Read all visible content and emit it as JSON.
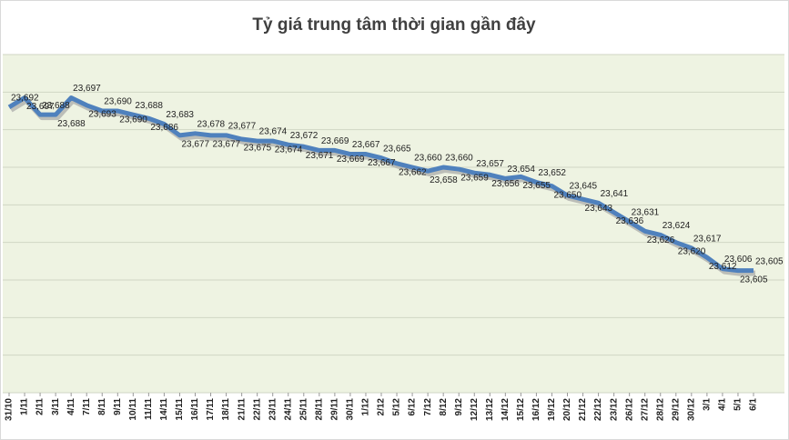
{
  "chart_data": {
    "type": "line",
    "title": "Tỷ giá trung tâm thời gian gần đây",
    "categories": [
      "31/10",
      "1/11",
      "2/11",
      "3/11",
      "4/11",
      "7/11",
      "8/11",
      "9/11",
      "10/11",
      "11/11",
      "14/11",
      "15/11",
      "16/11",
      "17/11",
      "18/11",
      "21/11",
      "22/11",
      "23/11",
      "24/11",
      "25/11",
      "28/11",
      "29/11",
      "30/11",
      "1/12",
      "2/12",
      "5/12",
      "6/12",
      "7/12",
      "8/12",
      "9/12",
      "12/12",
      "13/12",
      "14/12",
      "15/12",
      "16/12",
      "19/12",
      "20/12",
      "21/12",
      "22/12",
      "23/12",
      "26/12",
      "27/12",
      "28/12",
      "29/12",
      "30/12",
      "3/1",
      "4/1",
      "5/1",
      "6/1"
    ],
    "series": [
      {
        "name": "Tỷ giá trung tâm",
        "color": "#4f81bd",
        "values": [
          23692,
          23697,
          23688,
          23688,
          23697,
          23693,
          23690,
          23690,
          23688,
          23686,
          23683,
          23677,
          23678,
          23677,
          23677,
          23675,
          23674,
          23674,
          23672,
          23671,
          23669,
          23669,
          23667,
          23667,
          23665,
          23662,
          23660,
          23658,
          23660,
          23659,
          23657,
          23656,
          23654,
          23655,
          23652,
          23650,
          23645,
          23643,
          23641,
          23636,
          23631,
          23626,
          23624,
          23620,
          23617,
          23612,
          23606,
          23605,
          23605
        ],
        "value_labels": [
          "23,692",
          "23,697",
          "23,688",
          "23,688",
          "23,697",
          "23,693",
          "23,690",
          "23,690",
          "23,688",
          "23,686",
          "23,683",
          "23,677",
          "23,678",
          "23,677",
          "23,677",
          "23,675",
          "23,674",
          "23,674",
          "23,672",
          "23,671",
          "23,669",
          "23,669",
          "23,667",
          "23,667",
          "23,665",
          "23,662",
          "23,660",
          "23,658",
          "23,660",
          "23,659",
          "23,657",
          "23,656",
          "23,654",
          "23,655",
          "23,652",
          "23,650",
          "23,645",
          "23,643",
          "23,641",
          "23,636",
          "23,631",
          "23,626",
          "23,624",
          "23,620",
          "23,617",
          "23,612",
          "23,606",
          "23,605",
          "23,605"
        ]
      }
    ],
    "ylim": [
      23540,
      23720
    ],
    "yticks": [
      23540,
      23560,
      23580,
      23600,
      23620,
      23640,
      23660,
      23680,
      23700,
      23720
    ],
    "grid": true,
    "ytick_labels": false,
    "plot_background": "#eef3e2"
  }
}
